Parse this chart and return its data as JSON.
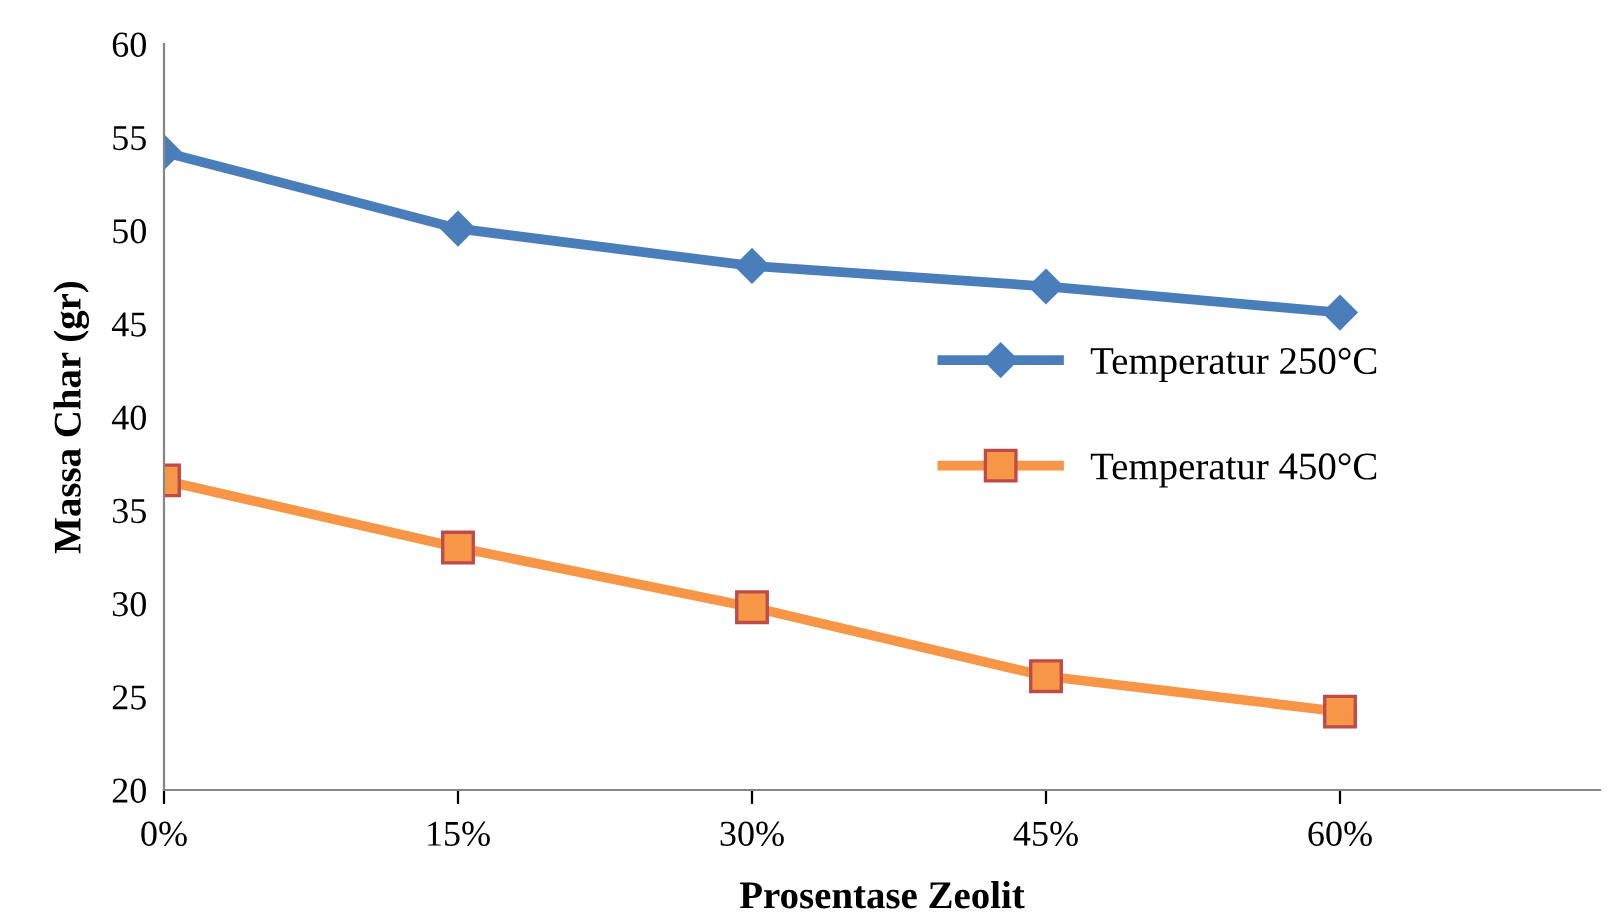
{
  "chart_data": {
    "type": "line",
    "xlabel": "Prosentase Zeolit",
    "ylabel": "Massa Char (gr)",
    "categories": [
      "0%",
      "15%",
      "30%",
      "45%",
      "60%"
    ],
    "series": [
      {
        "name": "Temperatur 250°C",
        "color": "#4a7ebb",
        "marker": "diamond",
        "values": [
          54.2,
          50.1,
          48.1,
          47.0,
          45.6
        ]
      },
      {
        "name": "Temperatur 450°C",
        "color": "#f79646",
        "marker": "square",
        "values": [
          36.6,
          33.0,
          29.8,
          26.1,
          24.2
        ]
      }
    ],
    "ylim": [
      20,
      60
    ],
    "yticks": [
      20,
      25,
      30,
      35,
      40,
      45,
      50,
      55,
      60
    ],
    "grid": false,
    "legend": "right",
    "line_style": "solid"
  }
}
